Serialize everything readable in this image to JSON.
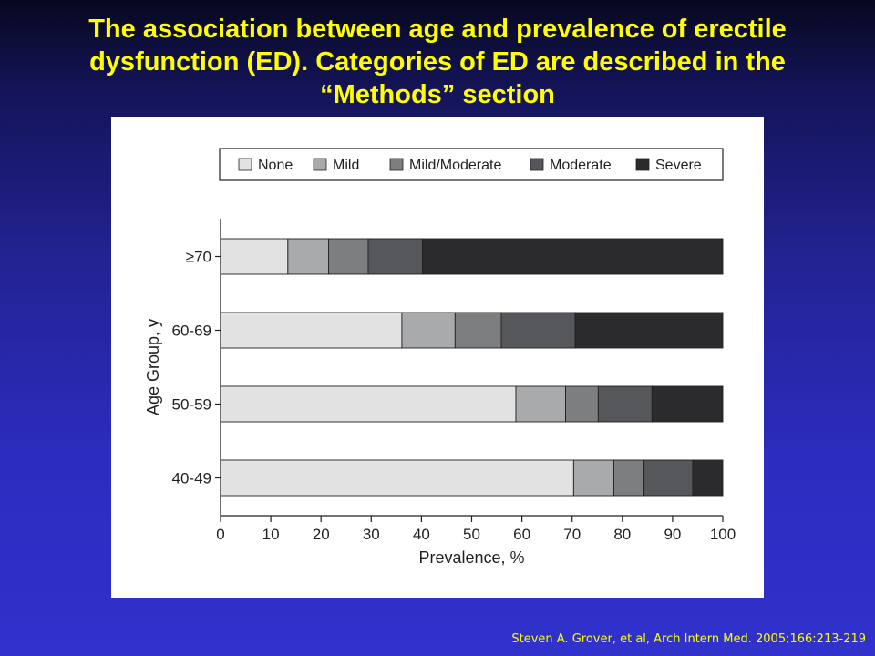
{
  "slide": {
    "title": "The association between age and prevalence of erectile dysfunction (ED). Categories of ED are described in the “Methods” section",
    "citation": "Steven A. Grover, et al, Arch Intern Med. 2005;166:213-219"
  },
  "chart_data": {
    "type": "bar",
    "orientation": "horizontal",
    "stacked": true,
    "categories": [
      "≥70",
      "60-69",
      "50-59",
      "40-49"
    ],
    "series": [
      {
        "name": "None",
        "color": "#e2e2e2",
        "values": [
          13.4,
          36.1,
          58.8,
          70.3
        ]
      },
      {
        "name": "Mild",
        "color": "#a8aaac",
        "values": [
          8.1,
          10.6,
          9.9,
          8.0
        ]
      },
      {
        "name": "Mild/Moderate",
        "color": "#7d7e80",
        "values": [
          7.9,
          9.2,
          6.5,
          6.0
        ]
      },
      {
        "name": "Moderate",
        "color": "#56575a",
        "values": [
          10.8,
          14.7,
          10.7,
          9.7
        ]
      },
      {
        "name": "Severe",
        "color": "#2b2b2d",
        "values": [
          59.8,
          29.4,
          14.1,
          6.0
        ]
      }
    ],
    "xlabel": "Prevalence, %",
    "ylabel": "Age Group, y",
    "xlim": [
      0,
      100
    ],
    "xticks": [
      "0",
      "10",
      "20",
      "30",
      "40",
      "50",
      "60",
      "70",
      "80",
      "90",
      "100"
    ],
    "legend_position": "top",
    "grid": false
  }
}
